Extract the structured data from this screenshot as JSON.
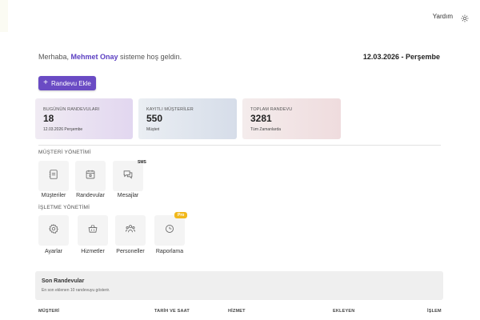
{
  "header": {
    "help_label": "Yardım",
    "theme_icon": "sun-icon"
  },
  "welcome": {
    "prefix": "Merhaba, ",
    "user_name": "Mehmet Onay",
    "suffix": " sisteme hoş geldin.",
    "date": "12.03.2026 - Perşembe"
  },
  "actions": {
    "add_appointment": "Randevu Ekle"
  },
  "stats": [
    {
      "label": "BUGÜNÜN RANDEVULARI",
      "value": "18",
      "sub": "12.03.2026 Perşembe"
    },
    {
      "label": "KAYITLI MÜŞTERİLER",
      "value": "550",
      "sub": "Müşteri"
    },
    {
      "label": "TOPLAM RANDEVU",
      "value": "3281",
      "sub": "Tüm Zamanlarda"
    }
  ],
  "customer_section": {
    "title": "MÜŞTERİ YÖNETİMİ",
    "items": [
      {
        "label": "Müşteriler",
        "icon": "contacts-icon"
      },
      {
        "label": "Randevular",
        "icon": "calendar-icon"
      },
      {
        "label": "Mesajlar",
        "icon": "messages-icon",
        "badge": "SMS"
      }
    ]
  },
  "business_section": {
    "title": "İŞLETME YÖNETİMİ",
    "items": [
      {
        "label": "Ayarlar",
        "icon": "gear-icon"
      },
      {
        "label": "Hizmetler",
        "icon": "basket-icon"
      },
      {
        "label": "Personeller",
        "icon": "staff-icon"
      },
      {
        "label": "Raporlama",
        "icon": "report-icon",
        "badge": "Pro"
      }
    ]
  },
  "recent": {
    "title": "Son Randevular",
    "subtitle": "En son eklenen 10 randevuyu gösterir.",
    "columns": [
      "MÜŞTERİ",
      "TARİH VE SAAT",
      "HİZMET",
      "EKLEYEN",
      "İŞLEM"
    ]
  },
  "colors": {
    "accent": "#6a4bc4",
    "name": "#5b3fc2",
    "pro_badge": "#f1b81c"
  }
}
